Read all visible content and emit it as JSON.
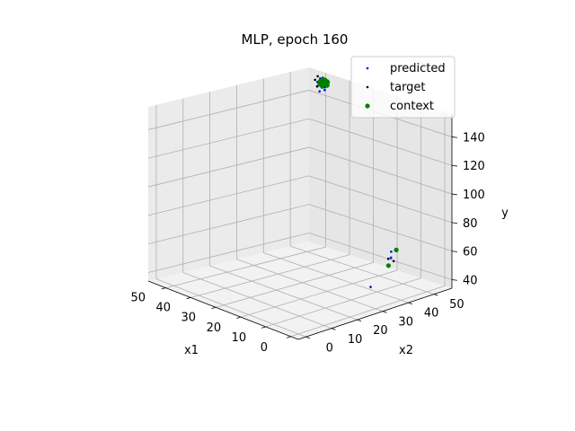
{
  "chart_data": {
    "type": "scatter",
    "projection": "3d",
    "title": "MLP, epoch 160",
    "xlabel": "x1",
    "ylabel": "x2",
    "zlabel": "y",
    "x_ticks": [
      "0",
      "10",
      "20",
      "30",
      "40",
      "50"
    ],
    "y_ticks": [
      "0",
      "10",
      "20",
      "30",
      "40",
      "50"
    ],
    "z_ticks": [
      "40",
      "60",
      "80",
      "100",
      "120",
      "140"
    ],
    "xlim": [
      -3,
      57
    ],
    "ylim": [
      -3,
      57
    ],
    "zlim": [
      34,
      156
    ],
    "grid": true,
    "legend": {
      "placement": "upper-right",
      "entries": [
        "predicted",
        "target",
        "context"
      ]
    },
    "series": [
      {
        "name": "predicted",
        "color": "#0000ff",
        "marker": "small-dot",
        "points": [
          [
            2,
            38,
            68
          ],
          [
            1,
            37,
            65
          ],
          [
            0,
            36,
            66
          ],
          [
            2,
            30,
            48
          ],
          [
            47,
            53,
            150
          ],
          [
            48,
            54,
            153
          ],
          [
            49,
            53,
            152
          ],
          [
            48,
            53,
            151
          ],
          [
            47,
            54,
            149
          ],
          [
            46,
            53,
            148
          ],
          [
            49,
            54,
            154
          ],
          [
            47,
            52,
            147
          ],
          [
            48,
            55,
            153
          ],
          [
            46,
            54,
            150
          ]
        ]
      },
      {
        "name": "target",
        "color": "#000000",
        "marker": "small-dot",
        "points": [
          [
            0,
            35,
            66
          ],
          [
            1,
            38,
            62
          ],
          [
            1,
            36,
            60
          ],
          [
            48,
            54,
            152
          ],
          [
            49,
            55,
            154
          ],
          [
            47,
            53,
            151
          ],
          [
            48,
            52,
            150
          ],
          [
            50,
            54,
            155
          ],
          [
            47,
            55,
            153
          ],
          [
            49,
            53,
            149
          ],
          [
            48,
            56,
            152
          ],
          [
            46,
            54,
            151
          ],
          [
            50,
            53,
            153
          ]
        ]
      },
      {
        "name": "context",
        "color": "#008000",
        "marker": "dot",
        "points": [
          [
            1,
            36,
            60
          ],
          [
            2,
            40,
            68
          ],
          [
            47,
            54,
            151
          ],
          [
            48,
            54,
            152
          ],
          [
            48,
            55,
            153
          ],
          [
            47,
            53,
            150
          ],
          [
            49,
            54,
            152
          ],
          [
            48,
            53,
            151
          ],
          [
            47,
            55,
            152
          ],
          [
            49,
            55,
            153
          ],
          [
            48,
            54,
            150
          ],
          [
            46,
            54,
            151
          ]
        ]
      }
    ]
  }
}
